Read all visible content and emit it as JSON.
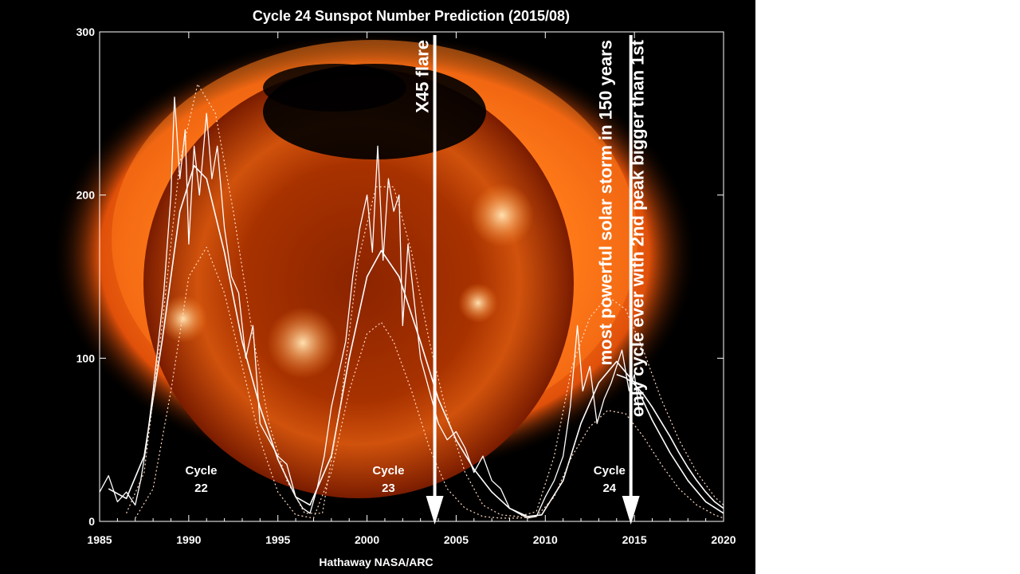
{
  "chart_data": {
    "type": "line",
    "title": "Cycle 24 Sunspot Number Prediction (2015/08)",
    "credit": "Hathaway  NASA/ARC",
    "xlim": [
      1985,
      2020
    ],
    "ylim": [
      0,
      300
    ],
    "x_ticks": [
      1985,
      1990,
      1995,
      2000,
      2005,
      2010,
      2015,
      2020
    ],
    "y_ticks": [
      0,
      100,
      200,
      300
    ],
    "x_tick_labels": [
      "1985",
      "1990",
      "1995",
      "2000",
      "2005",
      "2010",
      "2015",
      "2020"
    ],
    "y_tick_labels": [
      "0",
      "100",
      "200",
      "300"
    ],
    "background": "X-ray image of the Sun (orange corona) behind the plot",
    "series": [
      {
        "kind": "monthly sunspot number (noisy)",
        "x": [
          1985.0,
          1985.5,
          1986.0,
          1986.5,
          1987.0,
          1987.3,
          1987.6,
          1988.0,
          1988.3,
          1988.6,
          1989.0,
          1989.2,
          1989.5,
          1989.8,
          1990.0,
          1990.3,
          1990.6,
          1991.0,
          1991.3,
          1991.6,
          1992.0,
          1992.4,
          1992.8,
          1993.2,
          1993.6,
          1994.0,
          1994.5,
          1995.0,
          1995.5,
          1996.0,
          1996.4,
          1996.8,
          1997.2,
          1997.6,
          1998.0,
          1998.4,
          1998.8,
          1999.2,
          1999.6,
          2000.0,
          2000.3,
          2000.6,
          2000.9,
          2001.2,
          2001.5,
          2001.8,
          2002.0,
          2002.3,
          2002.6,
          2003.0,
          2003.5,
          2004.0,
          2004.5,
          2005.0,
          2005.5,
          2006.0,
          2006.5,
          2007.0,
          2007.5,
          2008.0,
          2008.5,
          2009.0,
          2009.5,
          2010.0,
          2010.5,
          2011.0,
          2011.4,
          2011.8,
          2012.1,
          2012.5,
          2012.9,
          2013.3,
          2013.7,
          2014.0,
          2014.3,
          2014.7,
          2015.0,
          2015.3
        ],
        "y": [
          18,
          28,
          12,
          18,
          10,
          25,
          45,
          80,
          110,
          140,
          200,
          260,
          210,
          240,
          170,
          230,
          200,
          250,
          210,
          230,
          180,
          150,
          140,
          100,
          120,
          60,
          50,
          40,
          35,
          15,
          8,
          5,
          20,
          40,
          70,
          90,
          110,
          150,
          180,
          200,
          165,
          230,
          160,
          210,
          190,
          200,
          120,
          170,
          140,
          100,
          80,
          60,
          50,
          55,
          45,
          30,
          40,
          25,
          20,
          8,
          5,
          2,
          3,
          15,
          25,
          40,
          70,
          120,
          80,
          95,
          60,
          75,
          85,
          95,
          105,
          80,
          90,
          65
        ]
      },
      {
        "kind": "smoothed sunspot number",
        "x": [
          1985.5,
          1986.5,
          1987.5,
          1988.5,
          1989.5,
          1990.3,
          1991.0,
          1992.0,
          1993.0,
          1994.0,
          1995.0,
          1996.0,
          1996.8,
          1998.0,
          1999.0,
          2000.0,
          2000.8,
          2001.8,
          2003.0,
          2004.0,
          2005.0,
          2006.0,
          2007.0,
          2008.0,
          2009.0,
          2009.8,
          2011.0,
          2012.0,
          2013.0,
          2014.0,
          2015.0,
          2016.0,
          2017.0,
          2018.0,
          2019.0,
          2020.0
        ],
        "y": [
          20,
          14,
          40,
          110,
          190,
          218,
          210,
          165,
          110,
          70,
          38,
          15,
          10,
          40,
          100,
          150,
          166,
          150,
          110,
          75,
          50,
          32,
          18,
          8,
          3,
          4,
          25,
          60,
          85,
          98,
          85,
          62,
          42,
          25,
          12,
          5
        ]
      },
      {
        "kind": "prediction upper bound (dotted)",
        "x": [
          1986.5,
          1987.5,
          1988.5,
          1989.5,
          1990.5,
          1991.5,
          1992.5,
          1993.5,
          1994.5,
          1995.5,
          1996.5,
          1997.5,
          1998.5,
          1999.5,
          2000.5,
          2001.5,
          2002.5,
          2003.5,
          2004.5,
          2005.5,
          2006.5,
          2007.5,
          2008.5,
          2009.5,
          2010.5,
          2011.5,
          2012.5,
          2013.5,
          2014.5,
          2015.5,
          2016.5,
          2017.5,
          2018.5,
          2019.5,
          2020.0
        ],
        "y": [
          5,
          30,
          120,
          220,
          268,
          250,
          190,
          120,
          60,
          25,
          5,
          5,
          70,
          160,
          205,
          205,
          165,
          110,
          65,
          30,
          10,
          4,
          3,
          6,
          40,
          95,
          125,
          138,
          130,
          105,
          75,
          50,
          30,
          15,
          10
        ]
      },
      {
        "kind": "prediction lower bound (dotted)",
        "x": [
          1987.0,
          1988.0,
          1989.0,
          1990.0,
          1991.0,
          1992.0,
          1993.0,
          1994.0,
          1995.0,
          1996.0,
          1997.0,
          1998.0,
          1999.0,
          2000.0,
          2000.8,
          2001.5,
          2002.5,
          2003.5,
          2004.5,
          2005.5,
          2006.5,
          2007.5,
          2008.5,
          2009.5,
          2010.5,
          2011.5,
          2012.5,
          2013.5,
          2014.5,
          2015.5,
          2016.5,
          2017.5,
          2018.5,
          2019.5,
          2020.0
        ],
        "y": [
          2,
          20,
          80,
          150,
          168,
          140,
          95,
          50,
          18,
          4,
          2,
          30,
          80,
          115,
          122,
          110,
          80,
          45,
          20,
          8,
          3,
          2,
          2,
          3,
          15,
          40,
          58,
          68,
          66,
          52,
          35,
          20,
          10,
          4,
          2
        ]
      },
      {
        "kind": "prediction (central)",
        "x": [
          2014.0,
          2014.5,
          2015.0,
          2015.5,
          2016.0,
          2016.5,
          2017.0,
          2017.5,
          2018.0,
          2018.5,
          2019.0,
          2019.5,
          2020.0
        ],
        "y": [
          90,
          88,
          84,
          78,
          70,
          61,
          52,
          42,
          33,
          25,
          18,
          12,
          8
        ]
      }
    ],
    "annotations": [
      {
        "text": "Cycle\n22",
        "x": 1990.7,
        "y": 25
      },
      {
        "text": "Cycle\n23",
        "x": 2001.2,
        "y": 25
      },
      {
        "text": "Cycle\n24",
        "x": 2013.6,
        "y": 25
      }
    ],
    "arrows": [
      {
        "x": 2003.8,
        "label": "X45 flare"
      },
      {
        "x": 2014.8,
        "label_lines": [
          "most powerful solar storm in 150 years",
          "only cycle ever with 2nd peak bigger than 1st"
        ]
      }
    ]
  },
  "colors": {
    "plot_bg": "#000000",
    "sun_core": "#7a1a00",
    "sun_glow": "#ff7a1a",
    "line": "#ffffff"
  }
}
